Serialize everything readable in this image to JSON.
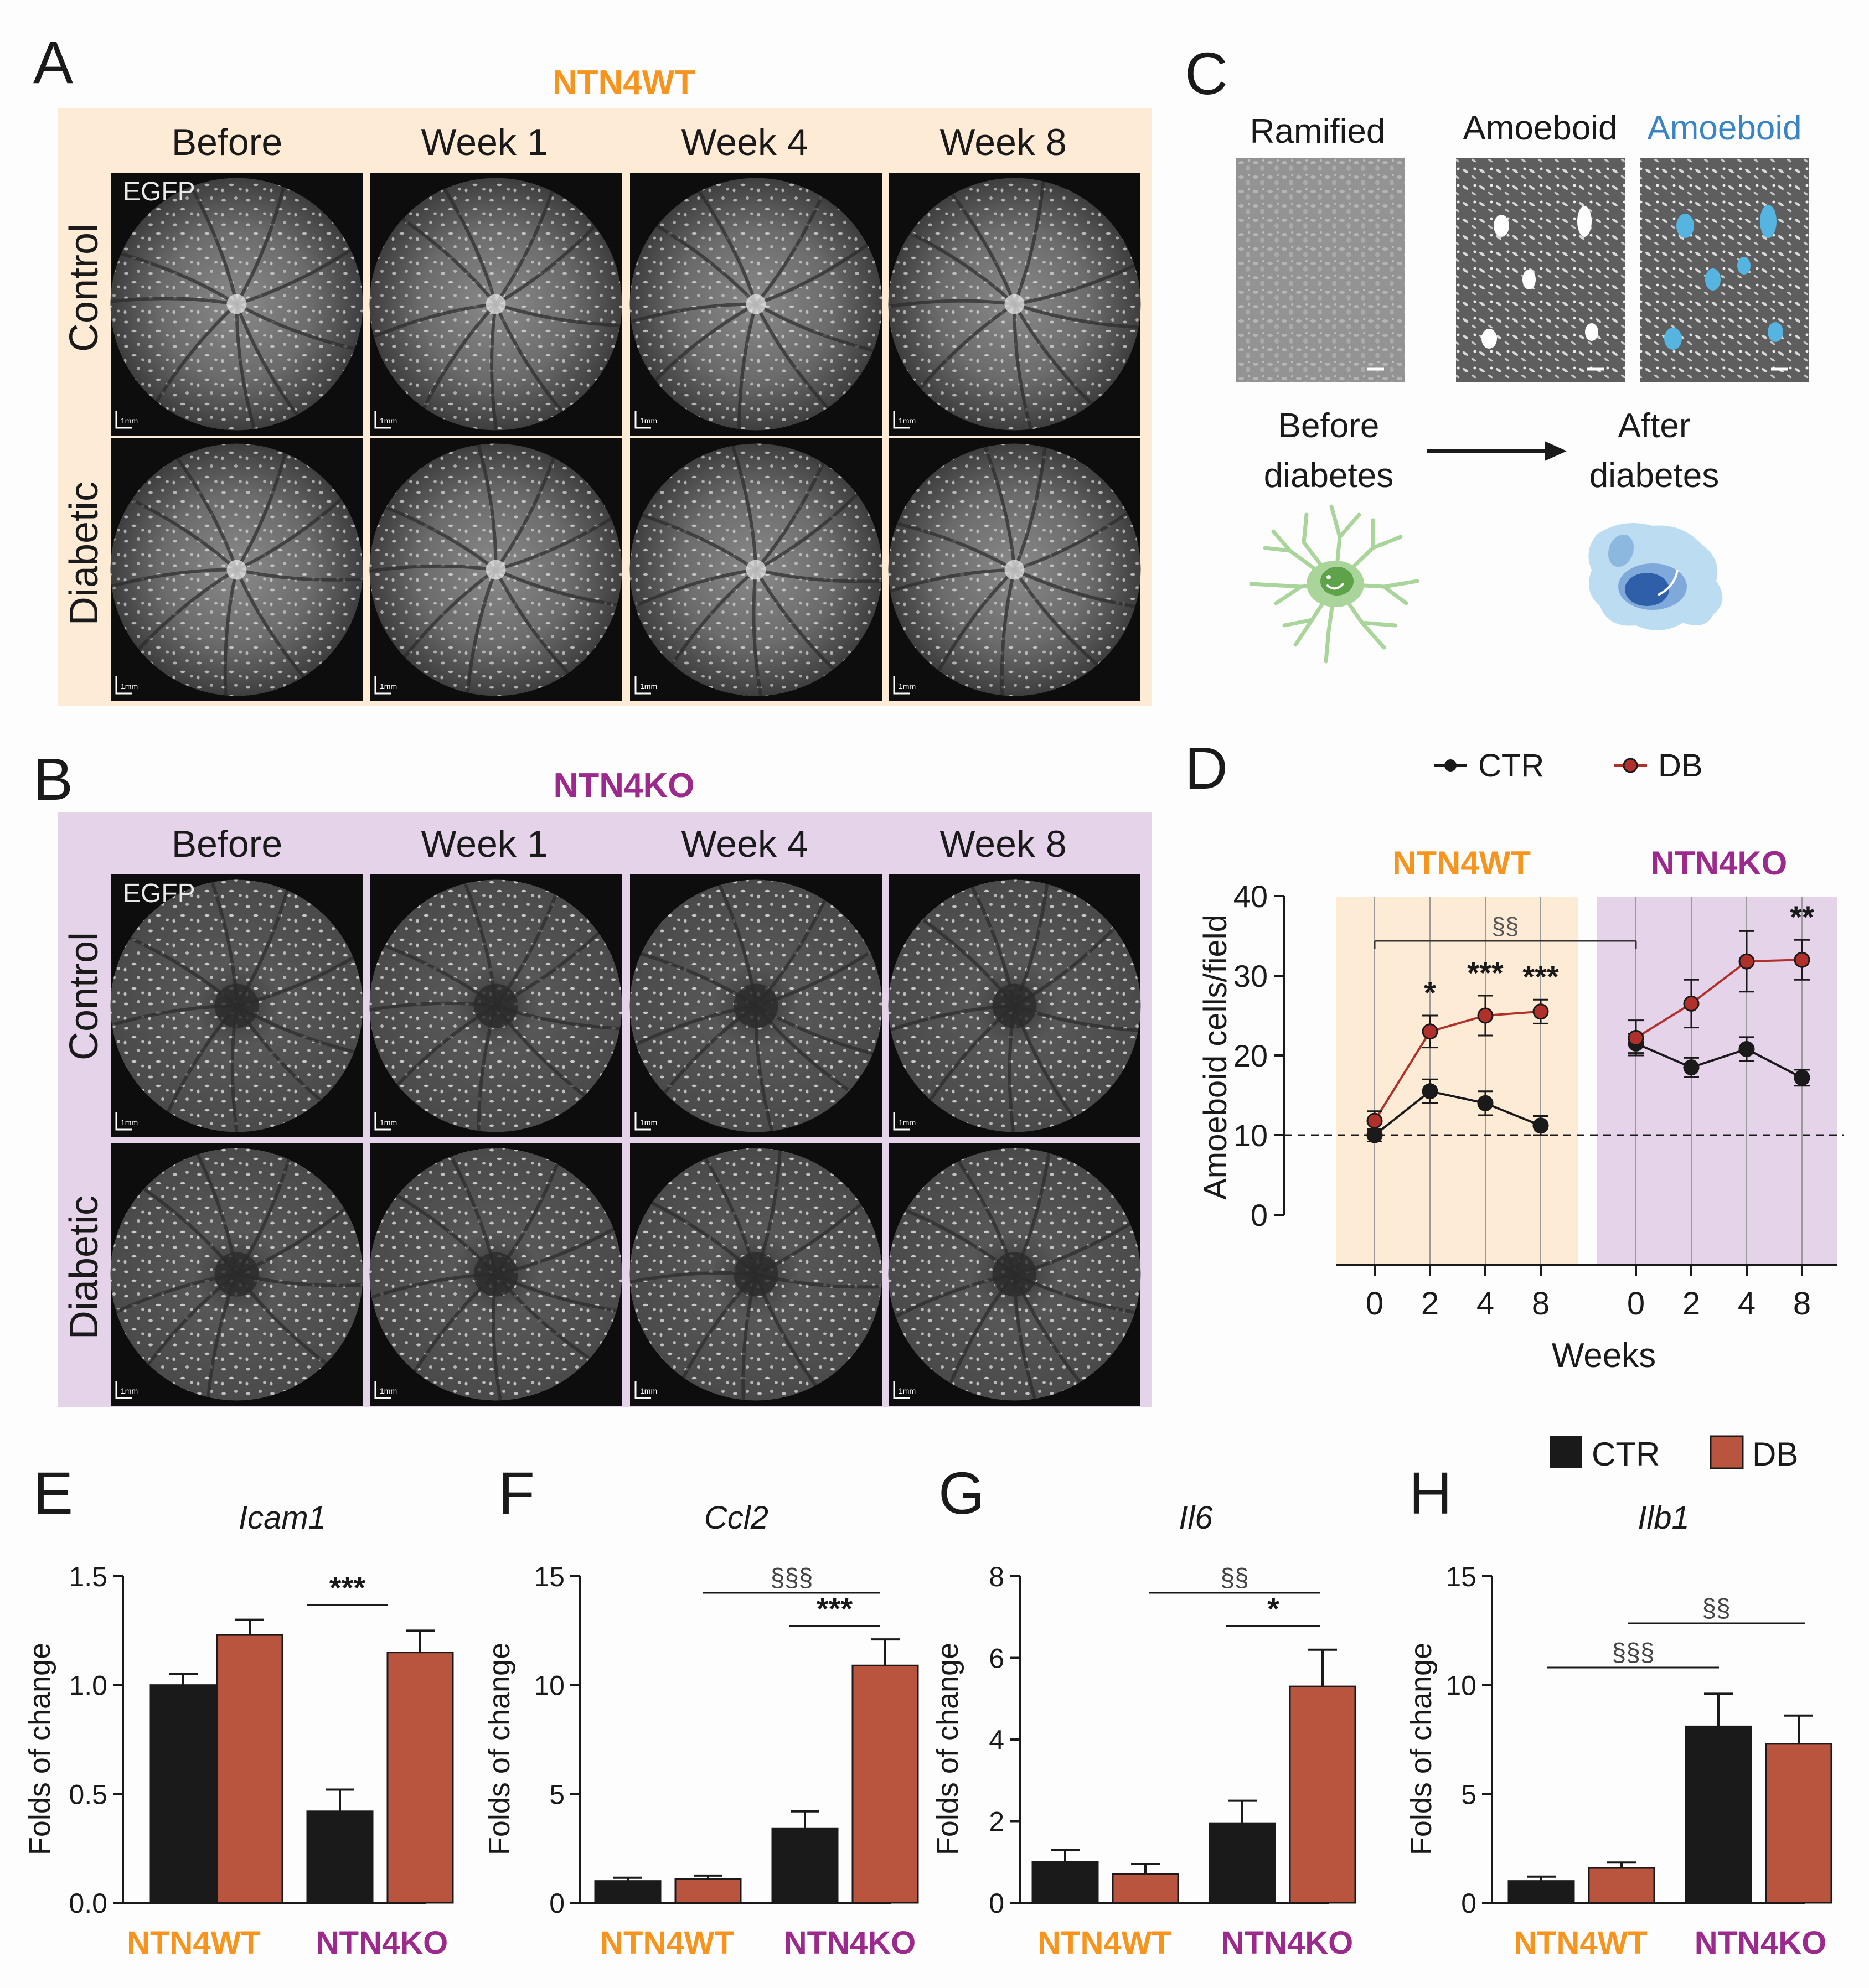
{
  "panel_letters": {
    "A": "A",
    "B": "B",
    "C": "C",
    "D": "D",
    "E": "E",
    "F": "F",
    "G": "G",
    "H": "H"
  },
  "colors": {
    "wt": "#f7941d",
    "ko": "#9b2a8c",
    "wt_bg": "#fdebd6",
    "ko_bg": "#e5d3ea",
    "ctr": "#1a1a1a",
    "db": "#b9553e",
    "db_line": "#b0312b",
    "amoeboid_blue": "#3a84c6"
  },
  "panel_A": {
    "title": "NTN4WT",
    "columns": [
      "Before",
      "Week 1",
      "Week 4",
      "Week 8"
    ],
    "rows": [
      "Control",
      "Diabetic"
    ],
    "channel_label": "EGFP",
    "scalebar_label": "1mm"
  },
  "panel_B": {
    "title": "NTN4KO",
    "columns": [
      "Before",
      "Week 1",
      "Week 4",
      "Week 8"
    ],
    "rows": [
      "Control",
      "Diabetic"
    ],
    "channel_label": "EGFP",
    "scalebar_label": "1mm"
  },
  "panel_C": {
    "label_ramified": "Ramified",
    "label_amoeboid": "Amoeboid",
    "label_amoeboid_blue": "Amoeboid",
    "before_line1": "Before",
    "before_line2": "diabetes",
    "after_line1": "After",
    "after_line2": "diabetes"
  },
  "panel_E": {
    "gene": "Icam1"
  },
  "panel_F": {
    "gene": "Ccl2"
  },
  "panel_G": {
    "gene": "Il6"
  },
  "panel_H": {
    "gene": "Ilb1"
  },
  "bar_legend": {
    "ctr": "CTR",
    "db": "DB"
  },
  "chart_data": [
    {
      "id": "D",
      "type": "line",
      "ylabel": "Amoeboid cells/field",
      "xlabel": "Weeks",
      "ylim": [
        0,
        40
      ],
      "yticks": [
        0,
        10,
        20,
        30,
        40
      ],
      "reference_line": 10,
      "legend": [
        "CTR",
        "DB"
      ],
      "groups": [
        {
          "name": "NTN4WT",
          "x": [
            0,
            2,
            4,
            8
          ],
          "series": [
            {
              "name": "CTR",
              "values": [
                10,
                15.5,
                14,
                11.2
              ],
              "errors": [
                0.8,
                1.5,
                1.5,
                1.2
              ]
            },
            {
              "name": "DB",
              "values": [
                11.8,
                23,
                25,
                25.5
              ],
              "errors": [
                1.2,
                2,
                2.5,
                1.5
              ]
            }
          ],
          "significance": [
            "",
            "*",
            "***",
            "***"
          ]
        },
        {
          "name": "NTN4KO",
          "x": [
            0,
            2,
            4,
            8
          ],
          "series": [
            {
              "name": "CTR",
              "values": [
                21.5,
                18.5,
                20.8,
                17.2
              ],
              "errors": [
                1.2,
                1.2,
                1.5,
                1
              ]
            },
            {
              "name": "DB",
              "values": [
                22.2,
                26.5,
                31.8,
                32
              ],
              "errors": [
                2.2,
                3,
                3.8,
                2.5
              ]
            }
          ],
          "significance": [
            "",
            "",
            "",
            "**"
          ]
        }
      ],
      "bracket_label": "§§"
    },
    {
      "id": "E",
      "type": "bar",
      "title": "Icam1",
      "ylabel": "Folds of change",
      "categories": [
        "NTN4WT",
        "NTN4KO"
      ],
      "ylim": [
        0,
        1.5
      ],
      "yticks": [
        "0.0",
        "0.5",
        "1.0",
        "1.5"
      ],
      "series": [
        {
          "name": "CTR",
          "values": [
            1.0,
            0.42
          ],
          "errors": [
            0.05,
            0.1
          ]
        },
        {
          "name": "DB",
          "values": [
            1.23,
            1.15
          ],
          "errors": [
            0.07,
            0.1
          ]
        }
      ],
      "annotations": [
        "***"
      ]
    },
    {
      "id": "F",
      "type": "bar",
      "title": "Ccl2",
      "ylabel": "Folds of change",
      "categories": [
        "NTN4WT",
        "NTN4KO"
      ],
      "ylim": [
        0,
        15
      ],
      "yticks": [
        "0",
        "5",
        "10",
        "15"
      ],
      "series": [
        {
          "name": "CTR",
          "values": [
            1.0,
            3.4
          ],
          "errors": [
            0.15,
            0.8
          ]
        },
        {
          "name": "DB",
          "values": [
            1.1,
            10.9
          ],
          "errors": [
            0.15,
            1.2
          ]
        }
      ],
      "annotations": [
        "§§§",
        "***"
      ]
    },
    {
      "id": "G",
      "type": "bar",
      "title": "Il6",
      "ylabel": "Folds of change",
      "categories": [
        "NTN4WT",
        "NTN4KO"
      ],
      "ylim": [
        0,
        8
      ],
      "yticks": [
        "0",
        "2",
        "4",
        "6",
        "8"
      ],
      "series": [
        {
          "name": "CTR",
          "values": [
            1.0,
            1.95
          ],
          "errors": [
            0.3,
            0.55
          ]
        },
        {
          "name": "DB",
          "values": [
            0.7,
            5.3
          ],
          "errors": [
            0.25,
            0.9
          ]
        }
      ],
      "annotations": [
        "§§",
        "*"
      ]
    },
    {
      "id": "H",
      "type": "bar",
      "title": "Ilb1",
      "ylabel": "Folds of change",
      "categories": [
        "NTN4WT",
        "NTN4KO"
      ],
      "ylim": [
        0,
        15
      ],
      "yticks": [
        "0",
        "5",
        "10",
        "15"
      ],
      "series": [
        {
          "name": "CTR",
          "values": [
            1.0,
            8.1
          ],
          "errors": [
            0.2,
            1.5
          ]
        },
        {
          "name": "DB",
          "values": [
            1.6,
            7.3
          ],
          "errors": [
            0.25,
            1.3
          ]
        }
      ],
      "annotations": [
        "§§§",
        "§§"
      ]
    }
  ]
}
